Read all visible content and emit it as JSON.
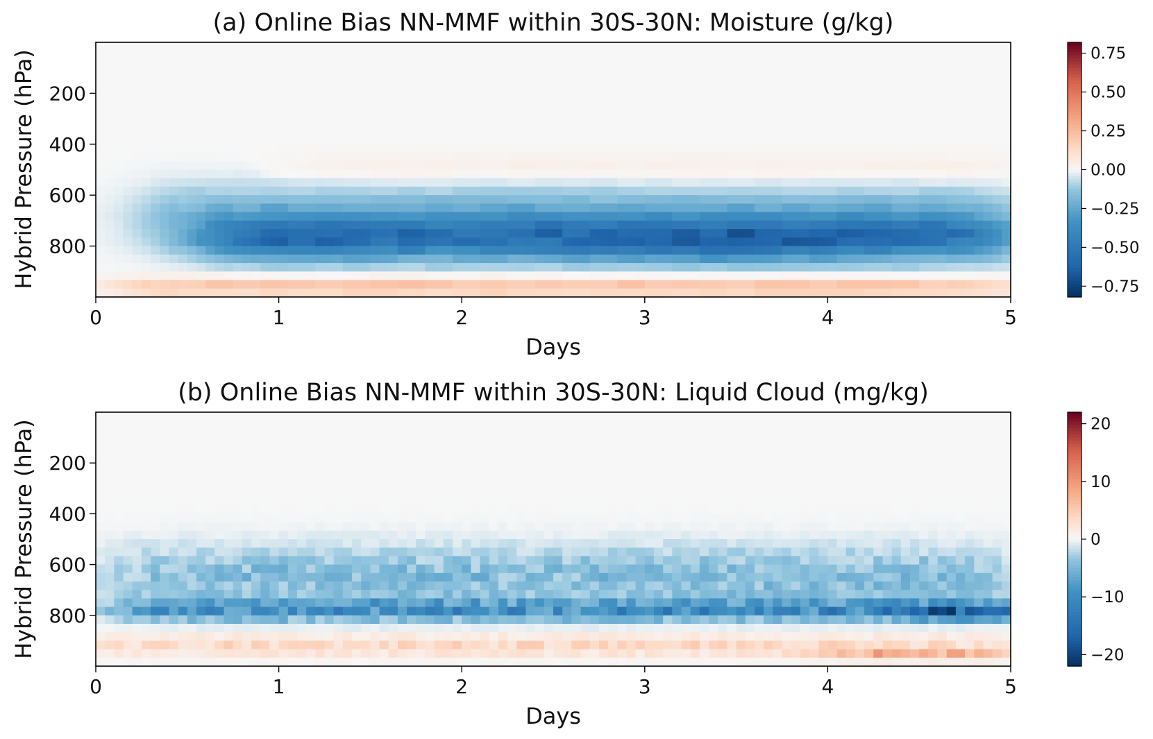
{
  "colors": {
    "negative_extreme": "#053061",
    "negative_mid": "#4393c3",
    "neutral": "#f7f7f7",
    "positive_mid": "#f4a582",
    "positive_extreme": "#67001f",
    "axes": "#000000"
  },
  "chart_data": [
    {
      "type": "heatmap",
      "panel": "a",
      "title": "(a) Online Bias NN-MMF within 30S-30N: Moisture (g/kg)",
      "xlabel": "Days",
      "ylabel": "Hybrid Pressure (hPa)",
      "xlim": [
        0,
        5
      ],
      "ylim": [
        1000,
        0
      ],
      "xticks": [
        0,
        1,
        2,
        3,
        4,
        5
      ],
      "yticks": [
        200,
        400,
        600,
        800
      ],
      "colormap": "RdBu_r",
      "clim": [
        -0.82,
        0.82
      ],
      "colorbar_ticks": [
        "0.75",
        "0.50",
        "0.25",
        "0.00",
        "−0.25",
        "−0.50",
        "−0.75"
      ],
      "colorbar_tick_values": [
        0.75,
        0.5,
        0.25,
        0,
        -0.25,
        -0.5,
        -0.75
      ],
      "features": [
        {
          "description": "dry band",
          "pressure_center": 775,
          "pressure_width": 85,
          "bias": -0.5,
          "days": [
            0.6,
            5
          ]
        },
        {
          "description": "upper dry halo",
          "pressure_center": 680,
          "pressure_width": 120,
          "bias": -0.2,
          "days": [
            0.3,
            5
          ]
        },
        {
          "description": "surface moist layer",
          "pressure_center": 960,
          "pressure_width": 35,
          "bias": 0.22,
          "days": [
            0.15,
            5
          ]
        },
        {
          "description": "mid-level moist tint",
          "pressure_center": 500,
          "pressure_width": 60,
          "bias": 0.05,
          "days": [
            1,
            5
          ]
        }
      ]
    },
    {
      "type": "heatmap",
      "panel": "b",
      "title": "(b) Online Bias NN-MMF within 30S-30N: Liquid Cloud (mg/kg)",
      "xlabel": "Days",
      "ylabel": "Hybrid Pressure (hPa)",
      "xlim": [
        0,
        5
      ],
      "ylim": [
        1000,
        0
      ],
      "xticks": [
        0,
        1,
        2,
        3,
        4,
        5
      ],
      "yticks": [
        200,
        400,
        600,
        800
      ],
      "colormap": "RdBu_r",
      "clim": [
        -22,
        22
      ],
      "colorbar_ticks": [
        "20",
        "10",
        "0",
        "−10",
        "−20"
      ],
      "colorbar_tick_values": [
        20,
        10,
        0,
        -10,
        -20
      ],
      "features": [
        {
          "description": "cloud deficit band",
          "pressure_center": 780,
          "pressure_width": 40,
          "bias": -10,
          "days": [
            0.1,
            5
          ]
        },
        {
          "description": "scattered deficit",
          "pressure_center": 650,
          "pressure_width": 120,
          "bias": -5,
          "days": [
            0.1,
            5
          ]
        },
        {
          "description": "strong deficit",
          "pressure_center": 785,
          "pressure_width": 30,
          "bias": -16,
          "days": [
            4.5,
            5
          ]
        },
        {
          "description": "low cloud excess",
          "pressure_center": 920,
          "pressure_width": 40,
          "bias": 4,
          "days": [
            0,
            5
          ]
        },
        {
          "description": "near-surface excess",
          "pressure_center": 960,
          "pressure_width": 15,
          "bias": 10,
          "days": [
            4,
            5
          ]
        }
      ]
    }
  ]
}
